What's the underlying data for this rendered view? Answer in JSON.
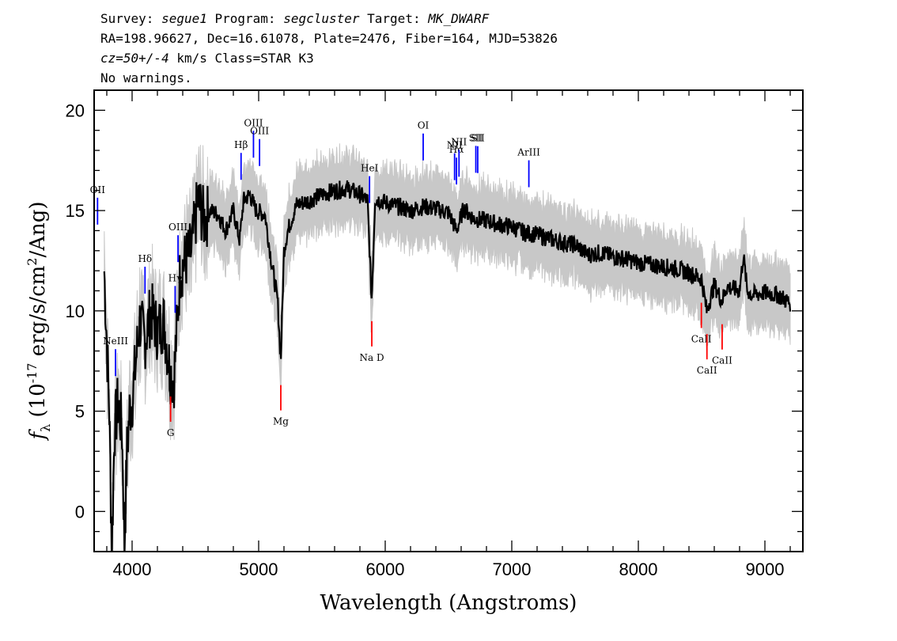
{
  "header": {
    "line1": {
      "survey_label": "Survey: ",
      "survey": "segue1",
      "program_label": " Program: ",
      "program": "segcluster",
      "target_label": " Target: ",
      "target": "MK_DWARF"
    },
    "line2": "RA=198.96627, Dec=16.61078, Plate=2476, Fiber=164, MJD=53826",
    "line3": {
      "cz": "cz=50+/-4",
      "rest": " km/s Class=STAR K3"
    },
    "line4": "No warnings."
  },
  "chart_data": {
    "type": "line",
    "xlabel": "Wavelength (Angstroms)",
    "ylabel": "f_λ (10^-17 erg/s/cm^2/Ang)",
    "xlim": [
      3700,
      9300
    ],
    "ylim": [
      -2,
      21
    ],
    "xticks": [
      4000,
      5000,
      6000,
      7000,
      8000,
      9000
    ],
    "yticks": [
      0,
      5,
      10,
      15,
      20
    ],
    "series": [
      {
        "role": "flux",
        "color": "#000000",
        "x": [
          3780,
          3820,
          3840,
          3860,
          3890,
          3920,
          3940,
          3960,
          3980,
          4000,
          4030,
          4060,
          4100,
          4150,
          4200,
          4250,
          4300,
          4330,
          4380,
          4420,
          4470,
          4520,
          4570,
          4620,
          4680,
          4740,
          4800,
          4850,
          4880,
          4930,
          4980,
          5050,
          5100,
          5150,
          5175,
          5200,
          5230,
          5300,
          5400,
          5500,
          5600,
          5700,
          5800,
          5860,
          5893,
          5920,
          6000,
          6100,
          6200,
          6300,
          6400,
          6500,
          6563,
          6620,
          6700,
          6800,
          6900,
          7000,
          7100,
          7200,
          7300,
          7400,
          7500,
          7600,
          7700,
          7800,
          7900,
          8000,
          8100,
          8200,
          8300,
          8400,
          8500,
          8540,
          8600,
          8660,
          8700,
          8800,
          8830,
          8860,
          8900,
          9000,
          9100,
          9150,
          9200
        ],
        "y": [
          12.0,
          5.0,
          -2.0,
          4.0,
          5.5,
          4.0,
          -1.5,
          3.0,
          5.0,
          5.5,
          7.5,
          9.5,
          8.5,
          10.0,
          9.0,
          9.5,
          7.0,
          6.5,
          12.0,
          12.5,
          13.0,
          15.5,
          14.5,
          15.0,
          14.8,
          14.0,
          15.0,
          13.5,
          15.5,
          15.8,
          15.0,
          14.8,
          12.5,
          10.5,
          7.5,
          13.0,
          14.0,
          15.3,
          15.5,
          15.8,
          16.0,
          16.1,
          15.8,
          15.5,
          10.5,
          15.6,
          15.4,
          15.2,
          15.0,
          15.2,
          15.1,
          14.9,
          14.0,
          15.1,
          14.6,
          14.5,
          14.3,
          14.2,
          13.9,
          13.8,
          13.6,
          13.4,
          13.3,
          12.8,
          12.9,
          12.7,
          12.6,
          12.4,
          12.3,
          12.2,
          12.1,
          11.9,
          11.6,
          10.0,
          11.3,
          10.5,
          11.2,
          11.0,
          12.8,
          11.0,
          10.8,
          10.9,
          10.8,
          10.6,
          10.4
        ]
      }
    ],
    "error_band": {
      "color": "#c8c8c8",
      "halfwidth": 1.2
    },
    "emission_lines": [
      {
        "label": "Hδ",
        "wavelength": 4102
      },
      {
        "label": "Hγ",
        "wavelength": 4340
      },
      {
        "label": "OIII",
        "wavelength": 4363
      },
      {
        "label": "Hβ",
        "wavelength": 4861
      },
      {
        "label": "OIII",
        "wavelength": 4959
      },
      {
        "label": "OIII",
        "wavelength": 5007
      },
      {
        "label": "HeI",
        "wavelength": 5876
      },
      {
        "label": "OI",
        "wavelength": 6300
      },
      {
        "label": "NII",
        "wavelength": 6548
      },
      {
        "label": "Hα",
        "wavelength": 6563
      },
      {
        "label": "NII",
        "wavelength": 6583
      },
      {
        "label": "SII",
        "wavelength": 6716
      },
      {
        "label": "SII",
        "wavelength": 6731
      },
      {
        "label": "ArIII",
        "wavelength": 7135
      },
      {
        "label": "OII",
        "wavelength": 3727
      },
      {
        "label": "NeIII",
        "wavelength": 3869
      }
    ],
    "absorption_lines": [
      {
        "label": "G",
        "wavelength": 4304
      },
      {
        "label": "Mg",
        "wavelength": 5175
      },
      {
        "label": "Na D",
        "wavelength": 5894
      },
      {
        "label": "CaII",
        "wavelength": 8498
      },
      {
        "label": "CaII",
        "wavelength": 8542
      },
      {
        "label": "CaII",
        "wavelength": 8662
      }
    ],
    "line_colors": {
      "emission": "#0000ff",
      "absorption": "#ff0000",
      "sky": "#000080"
    }
  }
}
